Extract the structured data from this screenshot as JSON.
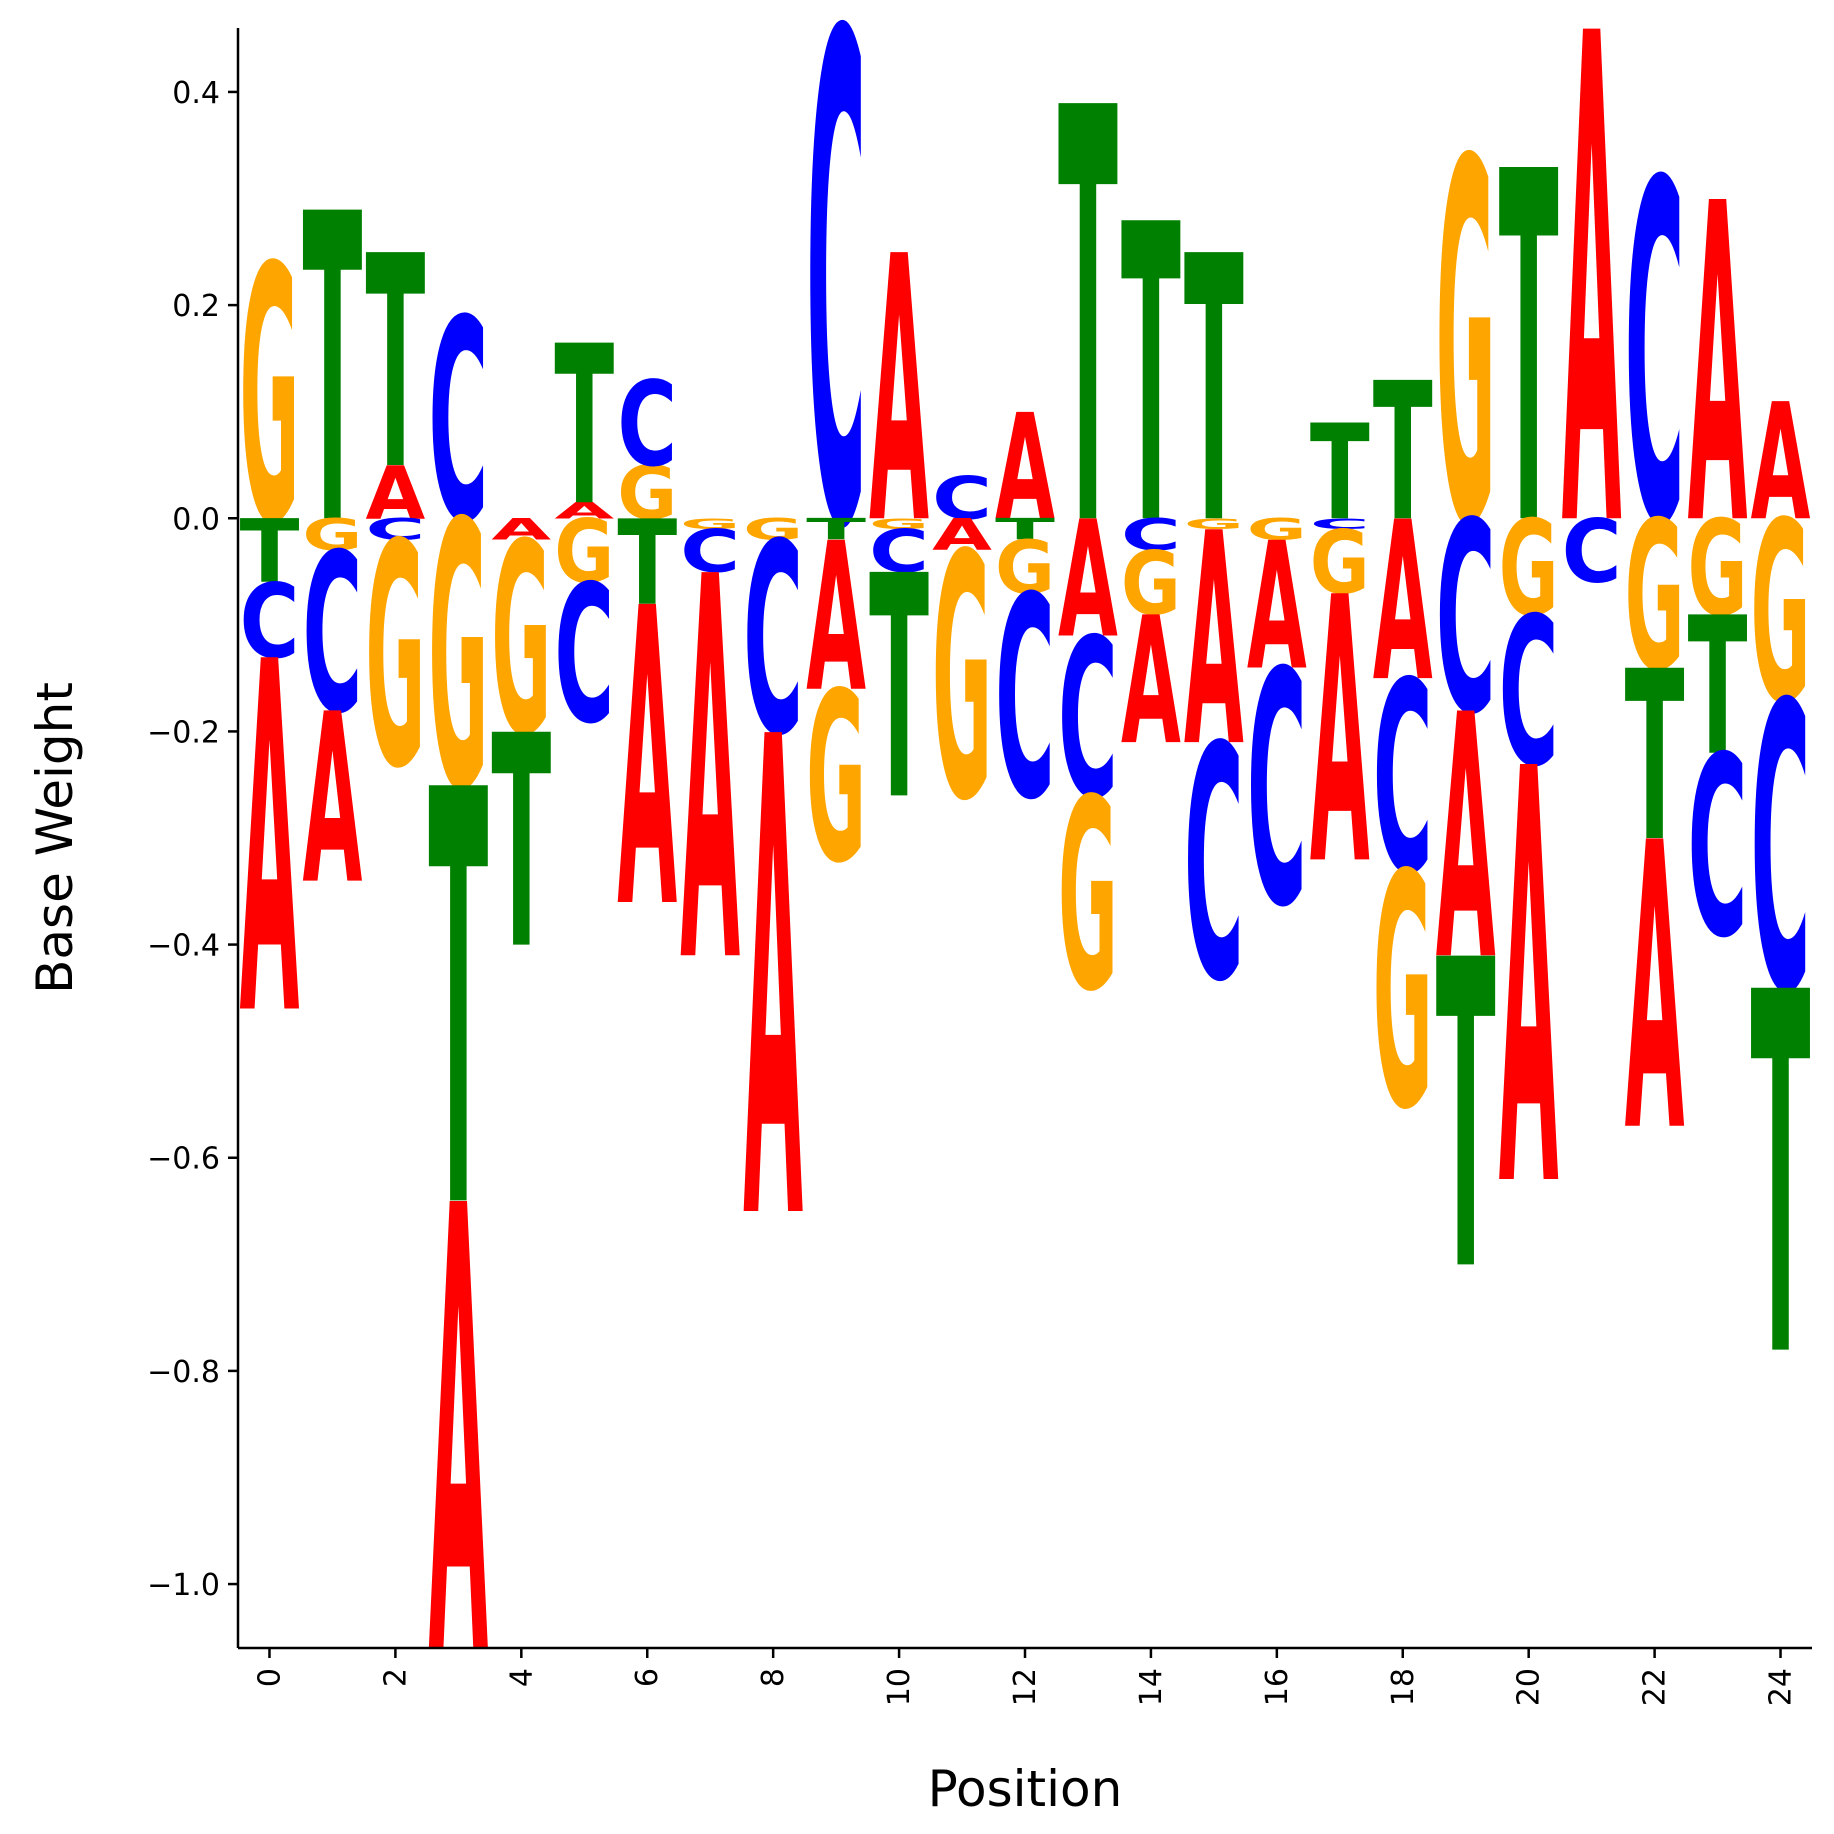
{
  "chart_data": {
    "type": "sequence-logo",
    "title": "",
    "xlabel": "Position",
    "ylabel": "Base Weight",
    "xlim": [
      -0.5,
      24.5
    ],
    "ylim": [
      -1.06,
      0.46
    ],
    "x_ticks": [
      0,
      2,
      4,
      6,
      8,
      10,
      12,
      14,
      16,
      18,
      20,
      22,
      24
    ],
    "y_ticks": [
      0.4,
      0.2,
      0.0,
      -0.2,
      -0.4,
      -0.6,
      -0.8,
      -1.0
    ],
    "y_tick_labels": [
      "0.4",
      "0.2",
      "0.0",
      "−0.2",
      "−0.4",
      "−0.6",
      "−0.8",
      "−1.0"
    ],
    "grid": false,
    "colors": {
      "A": "#ff0000",
      "C": "#0000ff",
      "G": "#ffa500",
      "T": "#008000"
    },
    "positions": [
      {
        "pos": 0,
        "A": -0.33,
        "C": -0.07,
        "G": 0.24,
        "T": -0.06
      },
      {
        "pos": 1,
        "A": -0.16,
        "C": -0.15,
        "G": -0.03,
        "T": 0.29
      },
      {
        "pos": 2,
        "A": 0.05,
        "C": -0.02,
        "G": -0.21,
        "T": 0.2
      },
      {
        "pos": 3,
        "A": -0.42,
        "C": 0.19,
        "G": -0.25,
        "T": -0.39
      },
      {
        "pos": 4,
        "A": -0.02,
        "C": 0.0,
        "G": -0.18,
        "T": -0.2
      },
      {
        "pos": 5,
        "A": 0.015,
        "C": -0.13,
        "G": -0.06,
        "T": 0.15
      },
      {
        "pos": 6,
        "A": -0.28,
        "C": 0.08,
        "G": 0.05,
        "T": -0.08
      },
      {
        "pos": 7,
        "A": -0.36,
        "C": -0.04,
        "G": -0.01,
        "T": 0.0
      },
      {
        "pos": 8,
        "A": -0.45,
        "C": -0.18,
        "G": -0.02,
        "T": 0.0
      },
      {
        "pos": 9,
        "A": -0.14,
        "C": 0.46,
        "G": -0.16,
        "T": -0.02
      },
      {
        "pos": 10,
        "A": 0.25,
        "C": -0.04,
        "G": -0.01,
        "T": -0.21
      },
      {
        "pos": 11,
        "A": -0.03,
        "C": 0.04,
        "G": -0.23,
        "T": 0.0
      },
      {
        "pos": 12,
        "A": 0.1,
        "C": -0.19,
        "G": -0.05,
        "T": -0.02
      },
      {
        "pos": 13,
        "A": -0.11,
        "C": -0.15,
        "G": -0.18,
        "T": 0.39
      },
      {
        "pos": 14,
        "A": -0.12,
        "C": -0.03,
        "G": -0.06,
        "T": 0.28
      },
      {
        "pos": 15,
        "A": -0.2,
        "C": -0.22,
        "G": -0.01,
        "T": 0.25
      },
      {
        "pos": 16,
        "A": -0.12,
        "C": -0.22,
        "G": -0.02,
        "T": 0.0
      },
      {
        "pos": 17,
        "A": -0.25,
        "C": -0.01,
        "G": -0.06,
        "T": 0.09
      },
      {
        "pos": 18,
        "A": -0.15,
        "C": -0.18,
        "G": -0.22,
        "T": 0.13
      },
      {
        "pos": 19,
        "A": -0.23,
        "C": -0.18,
        "G": 0.34,
        "T": -0.29
      },
      {
        "pos": 20,
        "A": -0.39,
        "C": -0.14,
        "G": -0.09,
        "T": 0.33
      },
      {
        "pos": 21,
        "A": 0.46,
        "C": -0.06,
        "G": 0.0,
        "T": 0.0
      },
      {
        "pos": 22,
        "A": -0.27,
        "C": 0.32,
        "G": -0.14,
        "T": -0.16
      },
      {
        "pos": 23,
        "A": 0.3,
        "C": -0.17,
        "G": -0.09,
        "T": -0.13
      },
      {
        "pos": 24,
        "A": 0.11,
        "C": -0.27,
        "G": -0.17,
        "T": -0.34
      }
    ]
  }
}
